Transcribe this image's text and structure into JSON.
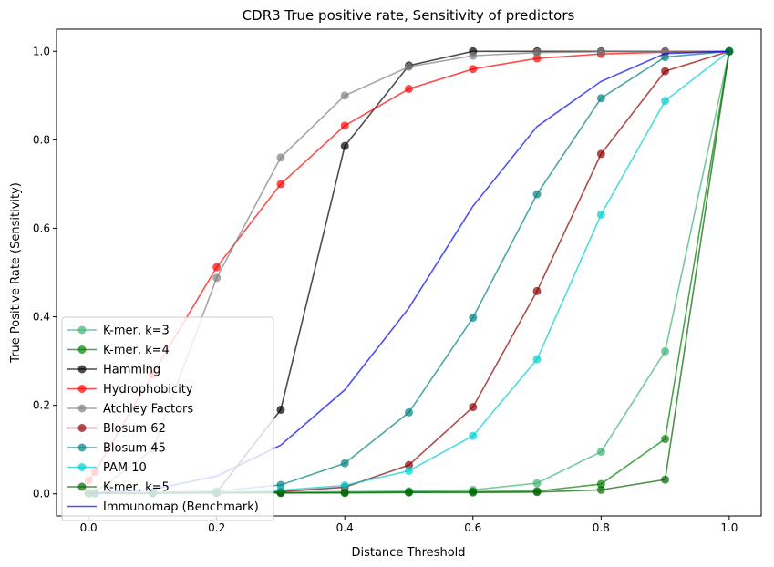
{
  "chart_data": {
    "type": "line",
    "title": "CDR3 True positive rate, Sensitivity of predictors",
    "xlabel": "Distance Threshold",
    "ylabel": "True Positive Rate (Sensitivity)",
    "xlim": [
      -0.05,
      1.05
    ],
    "ylim": [
      -0.05,
      1.05
    ],
    "xticks": [
      0.0,
      0.2,
      0.4,
      0.6,
      0.8,
      1.0
    ],
    "xtick_labels": [
      "0.0",
      "0.2",
      "0.4",
      "0.6",
      "0.8",
      "1.0"
    ],
    "yticks": [
      0.0,
      0.2,
      0.4,
      0.6,
      0.8,
      1.0
    ],
    "ytick_labels": [
      "0.0",
      "0.2",
      "0.4",
      "0.6",
      "0.8",
      "1.0"
    ],
    "grid": false,
    "legend_position": "lower-left",
    "series": [
      {
        "name": "K-mer, k=3",
        "color": "#3cb371",
        "markers": true,
        "x": [
          0.0,
          0.01,
          0.1,
          0.2,
          0.3,
          0.4,
          0.5,
          0.6,
          0.7,
          0.8,
          0.9,
          1.0
        ],
        "y": [
          0.002,
          0.002,
          0.003,
          0.004,
          0.004,
          0.005,
          0.006,
          0.009,
          0.024,
          0.095,
          0.322,
          1.0
        ]
      },
      {
        "name": "K-mer, k=4",
        "color": "#008000",
        "markers": true,
        "x": [
          0.0,
          0.01,
          0.1,
          0.2,
          0.3,
          0.4,
          0.5,
          0.6,
          0.7,
          0.8,
          0.9,
          1.0
        ],
        "y": [
          0.001,
          0.001,
          0.002,
          0.002,
          0.002,
          0.003,
          0.004,
          0.005,
          0.006,
          0.022,
          0.124,
          1.0
        ]
      },
      {
        "name": "Hamming",
        "color": "#000000",
        "markers": true,
        "x": [
          0.0,
          0.01,
          0.1,
          0.2,
          0.3,
          0.4,
          0.5,
          0.6,
          0.7,
          0.8,
          0.9,
          1.0
        ],
        "y": [
          0.001,
          0.001,
          0.002,
          0.003,
          0.19,
          0.786,
          0.968,
          1.0,
          1.0,
          1.0,
          1.0,
          1.0
        ]
      },
      {
        "name": "Hydrophobicity",
        "color": "#ff0000",
        "markers": true,
        "x": [
          0.0,
          0.01,
          0.1,
          0.2,
          0.3,
          0.4,
          0.5,
          0.6,
          0.7,
          0.8,
          0.9,
          1.0
        ],
        "y": [
          0.03,
          0.05,
          0.27,
          0.512,
          0.7,
          0.832,
          0.915,
          0.96,
          0.984,
          0.994,
          0.998,
          1.0
        ]
      },
      {
        "name": "Atchley Factors",
        "color": "#808080",
        "markers": true,
        "x": [
          0.0,
          0.01,
          0.1,
          0.2,
          0.3,
          0.4,
          0.5,
          0.6,
          0.7,
          0.8,
          0.9,
          1.0
        ],
        "y": [
          0.002,
          0.003,
          0.1,
          0.488,
          0.76,
          0.9,
          0.965,
          0.99,
          0.997,
          0.999,
          1.0,
          1.0
        ]
      },
      {
        "name": "Blosum 62",
        "color": "#8b0000",
        "markers": true,
        "x": [
          0.0,
          0.01,
          0.1,
          0.2,
          0.3,
          0.4,
          0.5,
          0.6,
          0.7,
          0.8,
          0.9,
          1.0
        ],
        "y": [
          0.001,
          0.001,
          0.002,
          0.003,
          0.005,
          0.015,
          0.065,
          0.196,
          0.458,
          0.768,
          0.955,
          1.0
        ]
      },
      {
        "name": "Blosum 45",
        "color": "#008080",
        "markers": true,
        "x": [
          0.0,
          0.01,
          0.1,
          0.2,
          0.3,
          0.4,
          0.5,
          0.6,
          0.7,
          0.8,
          0.9,
          1.0
        ],
        "y": [
          0.001,
          0.001,
          0.003,
          0.006,
          0.02,
          0.069,
          0.184,
          0.398,
          0.677,
          0.894,
          0.987,
          1.0
        ]
      },
      {
        "name": "PAM 10",
        "color": "#00ced1",
        "markers": true,
        "x": [
          0.0,
          0.01,
          0.1,
          0.2,
          0.3,
          0.4,
          0.5,
          0.6,
          0.7,
          0.8,
          0.9,
          1.0
        ],
        "y": [
          0.001,
          0.001,
          0.002,
          0.003,
          0.008,
          0.019,
          0.052,
          0.131,
          0.304,
          0.631,
          0.888,
          1.0
        ]
      },
      {
        "name": "K-mer, k=5",
        "color": "#006400",
        "markers": true,
        "x": [
          0.0,
          0.01,
          0.1,
          0.2,
          0.3,
          0.4,
          0.5,
          0.6,
          0.7,
          0.8,
          0.9,
          1.0
        ],
        "y": [
          0.001,
          0.001,
          0.001,
          0.002,
          0.002,
          0.002,
          0.003,
          0.003,
          0.004,
          0.009,
          0.032,
          1.0
        ]
      },
      {
        "name": "Immunomap (Benchmark)",
        "color": "#0000ff",
        "markers": false,
        "x": [
          0.0,
          0.1,
          0.2,
          0.3,
          0.4,
          0.5,
          0.6,
          0.7,
          0.8,
          0.9,
          1.0
        ],
        "y": [
          0.001,
          0.01,
          0.04,
          0.11,
          0.235,
          0.42,
          0.65,
          0.83,
          0.932,
          0.995,
          1.0
        ]
      }
    ]
  }
}
